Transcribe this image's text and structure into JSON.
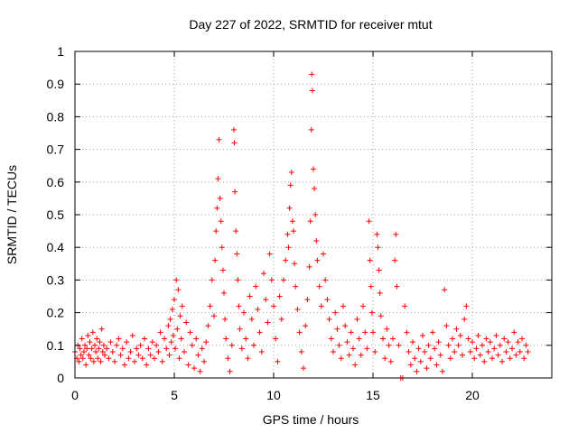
{
  "chart_data": {
    "type": "scatter",
    "title": "Day 227 of 2022, SRMTID for receiver mtut",
    "xlabel": "GPS time / hours",
    "ylabel": "SRMTID / TECUs",
    "xlim": [
      0,
      24
    ],
    "ylim": [
      0,
      1
    ],
    "xticks": [
      0,
      5,
      10,
      15,
      20
    ],
    "xtick_labels": [
      "0",
      "5",
      "10",
      "15",
      "20"
    ],
    "yticks": [
      0,
      0.1,
      0.2,
      0.3,
      0.4,
      0.5,
      0.6,
      0.7,
      0.8,
      0.9,
      1
    ],
    "ytick_labels": [
      "0",
      "0.1",
      "0.2",
      "0.3",
      "0.4",
      "0.5",
      "0.6",
      "0.7",
      "0.8",
      "0.9",
      "1"
    ],
    "grid": true,
    "marker": "+",
    "color": "#ff0000",
    "series": [
      {
        "name": "SRMTID",
        "points": [
          [
            0.0,
            0.08
          ],
          [
            0.1,
            0.06
          ],
          [
            0.15,
            0.1
          ],
          [
            0.2,
            0.05
          ],
          [
            0.25,
            0.09
          ],
          [
            0.3,
            0.07
          ],
          [
            0.35,
            0.12
          ],
          [
            0.4,
            0.06
          ],
          [
            0.45,
            0.08
          ],
          [
            0.5,
            0.1
          ],
          [
            0.55,
            0.04
          ],
          [
            0.6,
            0.09
          ],
          [
            0.65,
            0.13
          ],
          [
            0.7,
            0.07
          ],
          [
            0.75,
            0.11
          ],
          [
            0.8,
            0.06
          ],
          [
            0.85,
            0.09
          ],
          [
            0.9,
            0.14
          ],
          [
            0.95,
            0.05
          ],
          [
            1.0,
            0.1
          ],
          [
            1.05,
            0.08
          ],
          [
            1.1,
            0.12
          ],
          [
            1.15,
            0.06
          ],
          [
            1.2,
            0.09
          ],
          [
            1.25,
            0.11
          ],
          [
            1.3,
            0.05
          ],
          [
            1.35,
            0.15
          ],
          [
            1.4,
            0.08
          ],
          [
            1.45,
            0.1
          ],
          [
            1.5,
            0.07
          ],
          [
            1.6,
            0.09
          ],
          [
            1.7,
            0.06
          ],
          [
            1.8,
            0.11
          ],
          [
            1.9,
            0.08
          ],
          [
            2.0,
            0.05
          ],
          [
            2.1,
            0.1
          ],
          [
            2.2,
            0.12
          ],
          [
            2.3,
            0.07
          ],
          [
            2.4,
            0.09
          ],
          [
            2.5,
            0.04
          ],
          [
            2.6,
            0.11
          ],
          [
            2.7,
            0.06
          ],
          [
            2.8,
            0.08
          ],
          [
            2.9,
            0.13
          ],
          [
            3.0,
            0.05
          ],
          [
            3.1,
            0.09
          ],
          [
            3.2,
            0.07
          ],
          [
            3.3,
            0.1
          ],
          [
            3.4,
            0.06
          ],
          [
            3.5,
            0.12
          ],
          [
            3.6,
            0.04
          ],
          [
            3.7,
            0.09
          ],
          [
            3.8,
            0.07
          ],
          [
            3.9,
            0.11
          ],
          [
            4.0,
            0.06
          ],
          [
            4.1,
            0.1
          ],
          [
            4.2,
            0.08
          ],
          [
            4.3,
            0.14
          ],
          [
            4.4,
            0.05
          ],
          [
            4.5,
            0.12
          ],
          [
            4.6,
            0.09
          ],
          [
            4.7,
            0.16
          ],
          [
            4.75,
            0.07
          ],
          [
            4.8,
            0.18
          ],
          [
            4.85,
            0.11
          ],
          [
            4.9,
            0.21
          ],
          [
            4.95,
            0.13
          ],
          [
            5.0,
            0.24
          ],
          [
            5.05,
            0.09
          ],
          [
            5.1,
            0.3
          ],
          [
            5.15,
            0.15
          ],
          [
            5.2,
            0.27
          ],
          [
            5.25,
            0.06
          ],
          [
            5.3,
            0.19
          ],
          [
            5.35,
            0.12
          ],
          [
            5.4,
            0.22
          ],
          [
            5.5,
            0.08
          ],
          [
            5.6,
            0.17
          ],
          [
            5.7,
            0.04
          ],
          [
            5.8,
            0.14
          ],
          [
            5.9,
            0.1
          ],
          [
            6.0,
            0.03
          ],
          [
            6.1,
            0.12
          ],
          [
            6.2,
            0.07
          ],
          [
            6.3,
            0.02
          ],
          [
            6.4,
            0.09
          ],
          [
            6.5,
            0.05
          ],
          [
            6.6,
            0.11
          ],
          [
            6.7,
            0.16
          ],
          [
            6.8,
            0.22
          ],
          [
            6.9,
            0.3
          ],
          [
            7.0,
            0.19
          ],
          [
            7.05,
            0.36
          ],
          [
            7.1,
            0.45
          ],
          [
            7.15,
            0.52
          ],
          [
            7.2,
            0.61
          ],
          [
            7.25,
            0.73
          ],
          [
            7.3,
            0.55
          ],
          [
            7.35,
            0.48
          ],
          [
            7.4,
            0.4
          ],
          [
            7.45,
            0.33
          ],
          [
            7.5,
            0.26
          ],
          [
            7.55,
            0.18
          ],
          [
            7.6,
            0.12
          ],
          [
            7.7,
            0.06
          ],
          [
            7.8,
            0.02
          ],
          [
            7.9,
            0.1
          ],
          [
            8.0,
            0.76
          ],
          [
            8.02,
            0.72
          ],
          [
            8.05,
            0.57
          ],
          [
            8.1,
            0.45
          ],
          [
            8.15,
            0.38
          ],
          [
            8.2,
            0.3
          ],
          [
            8.25,
            0.22
          ],
          [
            8.3,
            0.15
          ],
          [
            8.4,
            0.09
          ],
          [
            8.5,
            0.2
          ],
          [
            8.6,
            0.12
          ],
          [
            8.7,
            0.06
          ],
          [
            8.8,
            0.25
          ],
          [
            8.9,
            0.18
          ],
          [
            9.0,
            0.1
          ],
          [
            9.1,
            0.28
          ],
          [
            9.2,
            0.21
          ],
          [
            9.3,
            0.14
          ],
          [
            9.4,
            0.08
          ],
          [
            9.5,
            0.32
          ],
          [
            9.6,
            0.24
          ],
          [
            9.7,
            0.17
          ],
          [
            9.8,
            0.38
          ],
          [
            9.9,
            0.3
          ],
          [
            10.0,
            0.22
          ],
          [
            10.1,
            0.12
          ],
          [
            10.2,
            0.05
          ],
          [
            10.3,
            0.25
          ],
          [
            10.4,
            0.18
          ],
          [
            10.5,
            0.3
          ],
          [
            10.6,
            0.36
          ],
          [
            10.7,
            0.44
          ],
          [
            10.75,
            0.4
          ],
          [
            10.8,
            0.52
          ],
          [
            10.85,
            0.59
          ],
          [
            10.9,
            0.63
          ],
          [
            10.95,
            0.48
          ],
          [
            11.0,
            0.45
          ],
          [
            11.05,
            0.35
          ],
          [
            11.1,
            0.28
          ],
          [
            11.2,
            0.21
          ],
          [
            11.3,
            0.14
          ],
          [
            11.4,
            0.08
          ],
          [
            11.5,
            0.03
          ],
          [
            11.6,
            0.16
          ],
          [
            11.7,
            0.24
          ],
          [
            11.8,
            0.34
          ],
          [
            11.85,
            0.48
          ],
          [
            11.9,
            0.76
          ],
          [
            11.92,
            0.93
          ],
          [
            11.95,
            0.88
          ],
          [
            12.0,
            0.64
          ],
          [
            12.05,
            0.58
          ],
          [
            12.1,
            0.5
          ],
          [
            12.15,
            0.42
          ],
          [
            12.2,
            0.36
          ],
          [
            12.3,
            0.28
          ],
          [
            12.4,
            0.22
          ],
          [
            12.5,
            0.38
          ],
          [
            12.6,
            0.3
          ],
          [
            12.7,
            0.24
          ],
          [
            12.8,
            0.18
          ],
          [
            12.9,
            0.12
          ],
          [
            13.0,
            0.08
          ],
          [
            13.1,
            0.2
          ],
          [
            13.2,
            0.15
          ],
          [
            13.3,
            0.1
          ],
          [
            13.4,
            0.06
          ],
          [
            13.5,
            0.22
          ],
          [
            13.6,
            0.16
          ],
          [
            13.7,
            0.11
          ],
          [
            13.8,
            0.07
          ],
          [
            13.9,
            0.14
          ],
          [
            14.0,
            0.09
          ],
          [
            14.1,
            0.04
          ],
          [
            14.2,
            0.18
          ],
          [
            14.3,
            0.12
          ],
          [
            14.4,
            0.07
          ],
          [
            14.5,
            0.22
          ],
          [
            14.6,
            0.14
          ],
          [
            14.7,
            0.09
          ],
          [
            14.8,
            0.48
          ],
          [
            14.85,
            0.36
          ],
          [
            14.9,
            0.28
          ],
          [
            14.95,
            0.2
          ],
          [
            15.0,
            0.14
          ],
          [
            15.1,
            0.08
          ],
          [
            15.2,
            0.44
          ],
          [
            15.25,
            0.4
          ],
          [
            15.3,
            0.33
          ],
          [
            15.35,
            0.26
          ],
          [
            15.4,
            0.19
          ],
          [
            15.5,
            0.12
          ],
          [
            15.6,
            0.06
          ],
          [
            15.7,
            0.15
          ],
          [
            15.8,
            0.1
          ],
          [
            15.9,
            0.05
          ],
          [
            16.0,
            0.12
          ],
          [
            16.1,
            0.36
          ],
          [
            16.15,
            0.44
          ],
          [
            16.2,
            0.28
          ],
          [
            16.3,
            0.1
          ],
          [
            16.4,
            0.0
          ],
          [
            16.5,
            0.0
          ],
          [
            16.6,
            0.22
          ],
          [
            16.7,
            0.14
          ],
          [
            16.8,
            0.08
          ],
          [
            16.9,
            0.04
          ],
          [
            17.0,
            0.11
          ],
          [
            17.1,
            0.06
          ],
          [
            17.2,
            0.02
          ],
          [
            17.3,
            0.09
          ],
          [
            17.4,
            0.05
          ],
          [
            17.5,
            0.13
          ],
          [
            17.6,
            0.08
          ],
          [
            17.7,
            0.03
          ],
          [
            17.8,
            0.1
          ],
          [
            17.9,
            0.06
          ],
          [
            18.0,
            0.14
          ],
          [
            18.1,
            0.09
          ],
          [
            18.2,
            0.04
          ],
          [
            18.3,
            0.11
          ],
          [
            18.4,
            0.07
          ],
          [
            18.5,
            0.02
          ],
          [
            18.6,
            0.27
          ],
          [
            18.7,
            0.16
          ],
          [
            18.8,
            0.1
          ],
          [
            18.9,
            0.06
          ],
          [
            19.0,
            0.12
          ],
          [
            19.1,
            0.08
          ],
          [
            19.2,
            0.15
          ],
          [
            19.3,
            0.1
          ],
          [
            19.4,
            0.13
          ],
          [
            19.5,
            0.07
          ],
          [
            19.6,
            0.18
          ],
          [
            19.7,
            0.22
          ],
          [
            19.8,
            0.12
          ],
          [
            19.9,
            0.08
          ],
          [
            20.0,
            0.11
          ],
          [
            20.1,
            0.06
          ],
          [
            20.2,
            0.09
          ],
          [
            20.3,
            0.13
          ],
          [
            20.4,
            0.07
          ],
          [
            20.5,
            0.1
          ],
          [
            20.6,
            0.05
          ],
          [
            20.7,
            0.12
          ],
          [
            20.8,
            0.08
          ],
          [
            20.9,
            0.11
          ],
          [
            21.0,
            0.06
          ],
          [
            21.1,
            0.09
          ],
          [
            21.2,
            0.13
          ],
          [
            21.3,
            0.07
          ],
          [
            21.4,
            0.1
          ],
          [
            21.5,
            0.05
          ],
          [
            21.6,
            0.12
          ],
          [
            21.7,
            0.08
          ],
          [
            21.8,
            0.11
          ],
          [
            21.9,
            0.06
          ],
          [
            22.0,
            0.09
          ],
          [
            22.1,
            0.14
          ],
          [
            22.2,
            0.07
          ],
          [
            22.3,
            0.11
          ],
          [
            22.4,
            0.08
          ],
          [
            22.5,
            0.12
          ],
          [
            22.6,
            0.06
          ],
          [
            22.7,
            0.1
          ],
          [
            22.8,
            0.08
          ]
        ]
      }
    ]
  }
}
